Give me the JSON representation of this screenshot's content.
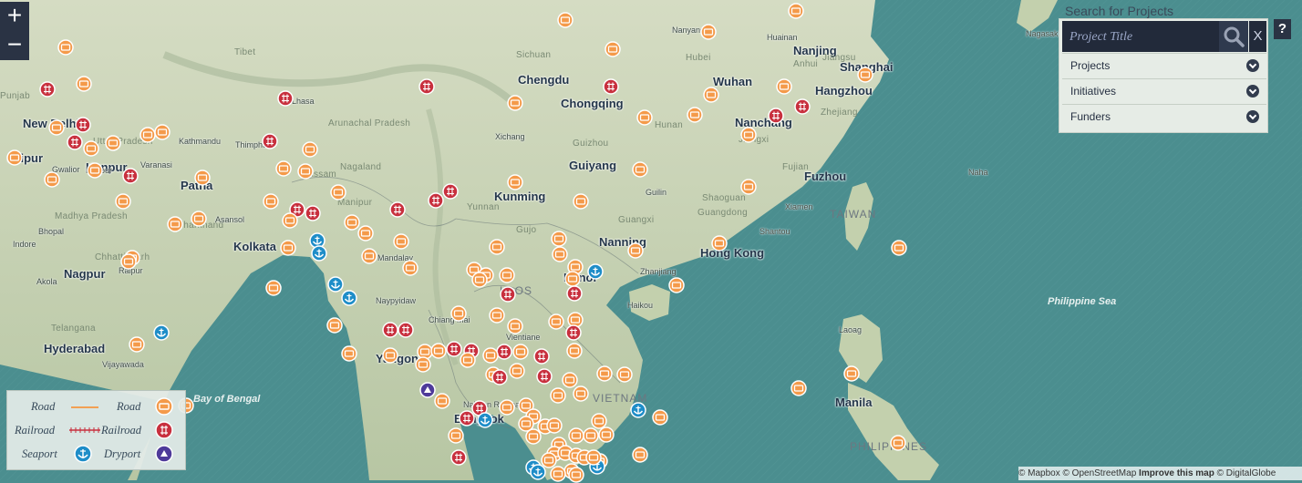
{
  "controls": {
    "zoom_in": "+",
    "zoom_out": "−"
  },
  "search": {
    "behind_text": "Search for Projects",
    "placeholder": "Project Title",
    "close_label": "X",
    "filters": [
      "Projects",
      "Initiatives",
      "Funders"
    ]
  },
  "help_label": "?",
  "legend": {
    "rows": [
      {
        "line_label": "Road",
        "icon_label": "Road"
      },
      {
        "line_label": "Railroad",
        "icon_label": "Railroad"
      },
      {
        "line_label": "Seaport",
        "icon_label": "Dryport"
      }
    ]
  },
  "attribution": {
    "mapbox": "© Mapbox",
    "osm": "© OpenStreetMap",
    "improve": "Improve this map",
    "dg": "© DigitalGlobe"
  },
  "colors": {
    "road": "#f49a4a",
    "railroad": "#c8303e",
    "seaport": "#1e8dc8",
    "dryport": "#4e3a9a",
    "ocean": "#4b8e8f",
    "land": "#c7d2b2"
  },
  "map_labels": {
    "cities": [
      "Chengdu",
      "Chongqing",
      "Wuhan",
      "Nanjing",
      "Shanghai",
      "Hangzhou",
      "Nanchang",
      "Guiyang",
      "Kunming",
      "Fuzhou",
      "Nanning",
      "Hong Kong",
      "Hanoi",
      "New Delhi",
      "Jaipur",
      "Kanpur",
      "Patna",
      "Kolkata",
      "Nagpur",
      "Hyderabad",
      "Yangon",
      "Bangkok",
      "Manila"
    ],
    "regions": [
      "Sichuan",
      "Hubei",
      "Hunan",
      "Jiangxi",
      "Zhejiang",
      "Guizhou",
      "Guangxi",
      "Guangdong",
      "Fujian",
      "Yunnan",
      "Tibet",
      "Uttar Pradesh",
      "Madhya Pradesh",
      "Chhattisgarh",
      "Telangana",
      "Nagaland",
      "Assam",
      "Manipur",
      "Arunachal Pradesh",
      "Jharkhand",
      "Gujo",
      "Shaoguan",
      "Anhui",
      "Punjab",
      "Jiangsu"
    ],
    "small_places": [
      "Lhasa",
      "Kathmandu",
      "Thimphu",
      "Xichang",
      "Gwalior",
      "Varanasi",
      "Asansol",
      "Bhopal",
      "Indore",
      "Raipur",
      "Akola",
      "Vijayawada",
      "Mandalay",
      "Naypyidaw",
      "Chiang Mai",
      "Vientiane",
      "Nakhon Ratchasi",
      "Zhanjiang",
      "Shantou",
      "Xiamen",
      "Guilin",
      "Laoag",
      "Naha",
      "Haikou",
      "Nanyang",
      "Huainan",
      "Nagasaki",
      "Kanpur"
    ],
    "countries": [
      "TAIWAN",
      "LAOS",
      "VIETNAM",
      "PHILIPPINES"
    ],
    "seas": [
      "Bay of Bengal",
      "Philippine Sea"
    ]
  },
  "markers": [
    {
      "type": "road",
      "lat": 29.8,
      "lon": 78.4
    },
    {
      "type": "road",
      "lat": 29.9,
      "lon": 79.2
    },
    {
      "type": "road",
      "lat": 27.5,
      "lon": 77.1
    },
    {
      "type": "road",
      "lat": 26.7,
      "lon": 79.9
    },
    {
      "type": "road",
      "lat": 26.9,
      "lon": 81.2
    },
    {
      "type": "road",
      "lat": 25.4,
      "lon": 77.4
    },
    {
      "type": "road",
      "lat": 24.5,
      "lon": 85.2
    },
    {
      "type": "road",
      "lat": 23.2,
      "lon": 88.5
    },
    {
      "type": "road",
      "lat": 22.2,
      "lon": 89.3
    },
    {
      "type": "road",
      "lat": 25.6,
      "lon": 90.4
    },
    {
      "type": "road",
      "lat": 26.1,
      "lon": 92.1
    },
    {
      "type": "road",
      "lat": 25.2,
      "lon": 92.6
    },
    {
      "type": "road",
      "lat": 23.6,
      "lon": 95.2
    },
    {
      "type": "road",
      "lat": 22.0,
      "lon": 95.7
    },
    {
      "type": "road",
      "lat": 20.4,
      "lon": 80.5
    },
    {
      "type": "road",
      "lat": 16.4,
      "lon": 80.8
    },
    {
      "type": "road",
      "lat": 28.0,
      "lon": 110.9
    },
    {
      "type": "road",
      "lat": 31.5,
      "lon": 112.8
    },
    {
      "type": "road",
      "lat": 29.8,
      "lon": 110.9
    },
    {
      "type": "road",
      "lat": 25.9,
      "lon": 119.0
    },
    {
      "type": "road",
      "lat": 25.8,
      "lon": 104.8
    },
    {
      "type": "road",
      "lat": 24.6,
      "lon": 107.0
    },
    {
      "type": "road",
      "lat": 21.0,
      "lon": 113.6
    },
    {
      "type": "road",
      "lat": 28.6,
      "lon": 105.0
    },
    {
      "type": "road",
      "lat": 19.4,
      "lon": 103.2
    },
    {
      "type": "road",
      "lat": 18.6,
      "lon": 102.5
    },
    {
      "type": "road",
      "lat": 18.0,
      "lon": 101.6
    },
    {
      "type": "road",
      "lat": 20.0,
      "lon": 106.1
    },
    {
      "type": "road",
      "lat": 18.7,
      "lon": 105.0
    },
    {
      "type": "road",
      "lat": 16.6,
      "lon": 103.1
    },
    {
      "type": "road",
      "lat": 15.8,
      "lon": 101.4
    },
    {
      "type": "road",
      "lat": 15.7,
      "lon": 102.0
    },
    {
      "type": "road",
      "lat": 15.3,
      "lon": 103.8
    },
    {
      "type": "road",
      "lat": 14.0,
      "lon": 107.4
    },
    {
      "type": "road",
      "lat": 14.2,
      "lon": 108.6
    },
    {
      "type": "road",
      "lat": 13.2,
      "lon": 108.1
    },
    {
      "type": "road",
      "lat": 12.6,
      "lon": 106.0
    },
    {
      "type": "road",
      "lat": 11.8,
      "lon": 104.7
    },
    {
      "type": "road",
      "lat": 11.4,
      "lon": 105.4
    },
    {
      "type": "road",
      "lat": 10.6,
      "lon": 105.8
    },
    {
      "type": "road",
      "lat": 10.3,
      "lon": 106.7
    },
    {
      "type": "road",
      "lat": 10.0,
      "lon": 105.3
    },
    {
      "type": "road",
      "lat": 12.3,
      "lon": 98.4
    },
    {
      "type": "road",
      "lat": 13.6,
      "lon": 98.0
    },
    {
      "type": "road",
      "lat": 14.4,
      "lon": 97.5
    },
    {
      "type": "road",
      "lat": 15.0,
      "lon": 99.6
    },
    {
      "type": "road",
      "lat": 14.8,
      "lon": 100.2
    },
    {
      "type": "road",
      "lat": 16.5,
      "lon": 120.7
    },
    {
      "type": "road",
      "lat": 11.8,
      "lon": 121.8
    },
    {
      "type": "road",
      "lat": 31.9,
      "lon": 117.2
    },
    {
      "type": "road",
      "lat": 33.4,
      "lon": 108.7
    },
    {
      "type": "road",
      "lat": 30.5,
      "lon": 108.0
    }
  ]
}
